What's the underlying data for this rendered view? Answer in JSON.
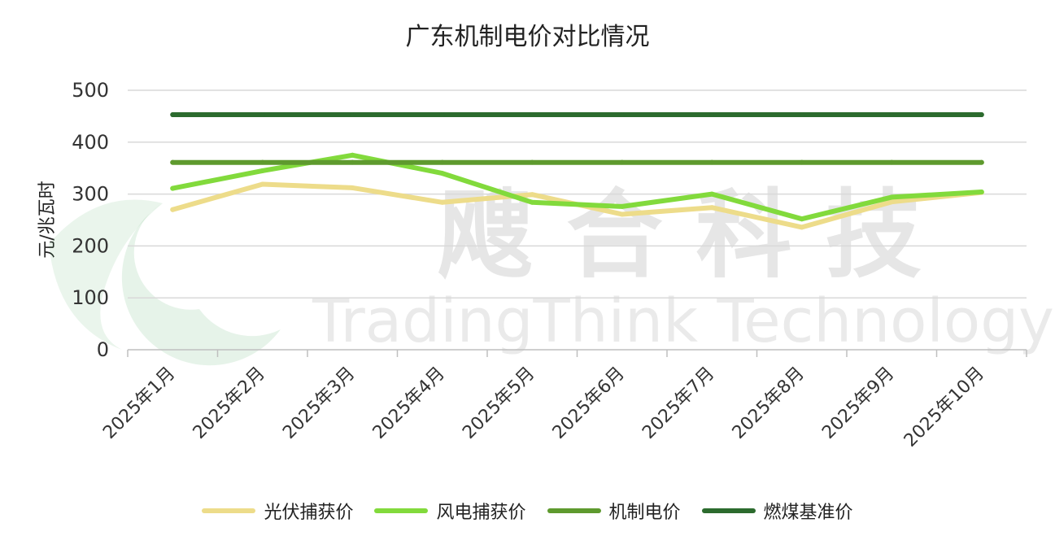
{
  "chart_data": {
    "type": "line",
    "title": "广东机制电价对比情况",
    "ylabel": "元/兆瓦时",
    "xlabel": "",
    "ylim": [
      0,
      500
    ],
    "yticks": [
      "0",
      "100",
      "200",
      "300",
      "400",
      "500"
    ],
    "grid": true,
    "legend_position": "bottom",
    "categories": [
      "2025年1月",
      "2025年2月",
      "2025年3月",
      "2025年4月",
      "2025年5月",
      "2025年6月",
      "2025年7月",
      "2025年8月",
      "2025年9月",
      "2025年10月"
    ],
    "series": [
      {
        "name": "光伏捕获价",
        "color": "#EDDC8A",
        "values": [
          270,
          319,
          312,
          284,
          299,
          261,
          274,
          236,
          285,
          303
        ]
      },
      {
        "name": "风电捕获价",
        "color": "#82DA3C",
        "values": [
          311,
          345,
          375,
          340,
          284,
          276,
          300,
          252,
          294,
          304
        ]
      },
      {
        "name": "机制电价",
        "color": "#5E9A2E",
        "values": [
          361,
          361,
          361,
          361,
          361,
          361,
          361,
          361,
          361,
          361
        ]
      },
      {
        "name": "燃煤基准价",
        "color": "#2C6B2E",
        "values": [
          453,
          453,
          453,
          453,
          453,
          453,
          453,
          453,
          453,
          453
        ]
      }
    ]
  },
  "watermark": {
    "cn_text": "飕 合 科 技",
    "en_text": "TradingThink Technology",
    "logo_color": "#2E9B47"
  }
}
